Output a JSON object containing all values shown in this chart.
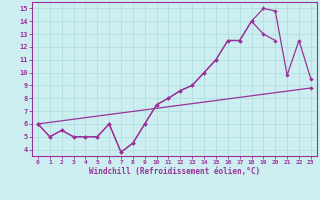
{
  "bg_color": "#cceef0",
  "line_color": "#993399",
  "grid_color": "#aadddd",
  "xlabel": "Windchill (Refroidissement éolien,°C)",
  "xlim": [
    -0.5,
    23.5
  ],
  "ylim": [
    3.5,
    15.5
  ],
  "xticks": [
    0,
    1,
    2,
    3,
    4,
    5,
    6,
    7,
    8,
    9,
    10,
    11,
    12,
    13,
    14,
    15,
    16,
    17,
    18,
    19,
    20,
    21,
    22,
    23
  ],
  "yticks": [
    4,
    5,
    6,
    7,
    8,
    9,
    10,
    11,
    12,
    13,
    14,
    15
  ],
  "line1_x": [
    0,
    1,
    2,
    3,
    4,
    5,
    6,
    7,
    8,
    9,
    10,
    11,
    12,
    13,
    14,
    15,
    16,
    17,
    18,
    19,
    20,
    21,
    22,
    23
  ],
  "line1_y": [
    6.0,
    5.0,
    5.5,
    5.0,
    5.0,
    5.0,
    6.0,
    3.8,
    4.5,
    6.0,
    7.5,
    8.0,
    8.6,
    9.0,
    10.0,
    11.0,
    12.5,
    12.5,
    14.0,
    15.0,
    14.8,
    9.8,
    12.5,
    9.5
  ],
  "line2_x": [
    0,
    1,
    2,
    3,
    4,
    5,
    6,
    7,
    8,
    9,
    10,
    11,
    12,
    13,
    14,
    15,
    16,
    17,
    18,
    19,
    20,
    21
  ],
  "line2_y": [
    6.0,
    5.0,
    5.5,
    5.0,
    5.0,
    5.0,
    6.0,
    3.8,
    4.5,
    6.0,
    7.5,
    8.0,
    8.6,
    9.0,
    10.0,
    11.0,
    12.5,
    12.5,
    14.0,
    13.0,
    12.5,
    null
  ],
  "line3_x": [
    0,
    23
  ],
  "line3_y": [
    6.0,
    8.8
  ]
}
